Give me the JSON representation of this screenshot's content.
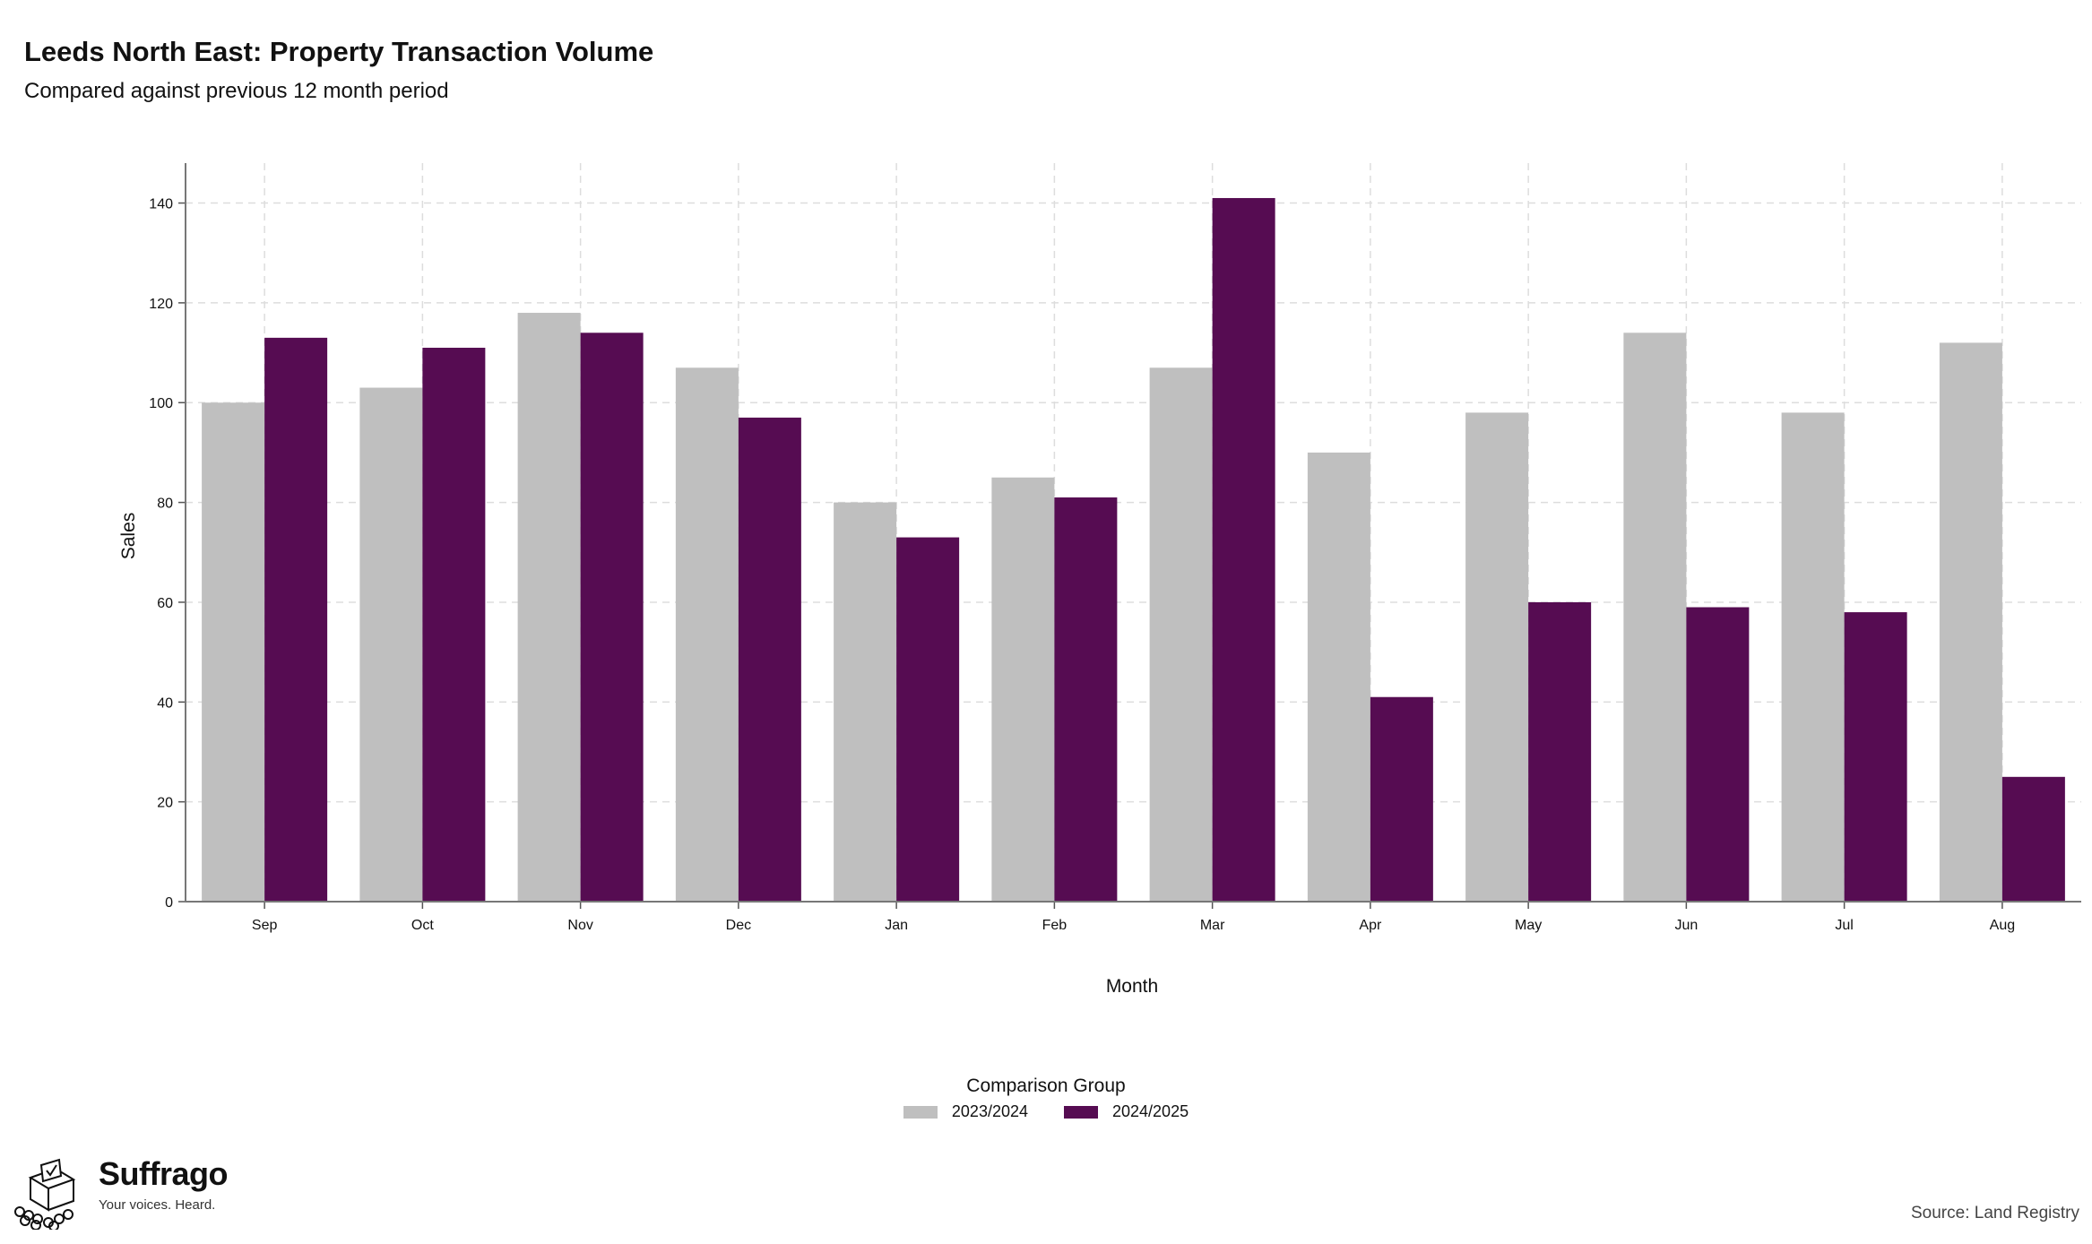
{
  "header": {
    "title": "Leeds North East: Property Transaction Volume",
    "subtitle": "Compared against previous 12 month period"
  },
  "chart_data": {
    "type": "bar",
    "categories": [
      "Sep",
      "Oct",
      "Nov",
      "Dec",
      "Jan",
      "Feb",
      "Mar",
      "Apr",
      "May",
      "Jun",
      "Jul",
      "Aug"
    ],
    "series": [
      {
        "name": "2023/2024",
        "color": "#bfbfbf",
        "values": [
          100,
          103,
          118,
          107,
          80,
          85,
          107,
          90,
          98,
          114,
          98,
          112
        ]
      },
      {
        "name": "2024/2025",
        "color": "#560c52",
        "values": [
          113,
          111,
          114,
          97,
          73,
          81,
          141,
          41,
          60,
          59,
          58,
          25
        ]
      }
    ],
    "xlabel": "Month",
    "ylabel": "Sales",
    "ylim": [
      0,
      148
    ],
    "yticks": [
      0,
      20,
      40,
      60,
      80,
      100,
      120,
      140
    ],
    "grid": true,
    "legend_title": "Comparison Group",
    "legend_position": "bottom"
  },
  "footer": {
    "brand_name": "Suffrago",
    "tagline": "Your voices. Heard.",
    "source": "Source: Land Registry",
    "logo_icon": "ballot-box-icon"
  }
}
